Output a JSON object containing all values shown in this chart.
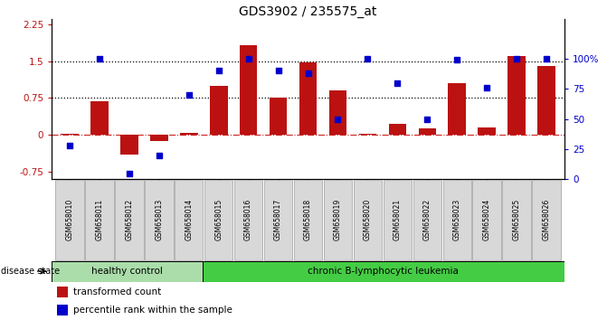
{
  "title": "GDS3902 / 235575_at",
  "samples": [
    "GSM658010",
    "GSM658011",
    "GSM658012",
    "GSM658013",
    "GSM658014",
    "GSM658015",
    "GSM658016",
    "GSM658017",
    "GSM658018",
    "GSM658019",
    "GSM658020",
    "GSM658021",
    "GSM658022",
    "GSM658023",
    "GSM658024",
    "GSM658025",
    "GSM658026"
  ],
  "bar_values": [
    0.02,
    0.68,
    -0.4,
    -0.13,
    0.05,
    1.0,
    1.82,
    0.75,
    1.48,
    0.9,
    0.02,
    0.22,
    0.13,
    1.05,
    0.16,
    1.6,
    1.4
  ],
  "dot_values": [
    28,
    100,
    5,
    20,
    70,
    90,
    100,
    90,
    88,
    50,
    100,
    80,
    50,
    99,
    76,
    100,
    100
  ],
  "healthy_count": 5,
  "ylim_left": [
    -0.9,
    2.35
  ],
  "ylim_right": [
    0,
    133.0
  ],
  "yticks_left": [
    -0.75,
    0.0,
    0.75,
    1.5,
    2.25
  ],
  "ytick_labels_left": [
    "-0.75",
    "0",
    "0.75",
    "1.5",
    "2.25"
  ],
  "yticks_right": [
    0,
    25,
    50,
    75,
    100
  ],
  "ytick_labels_right": [
    "0",
    "25",
    "50",
    "75",
    "100%"
  ],
  "hlines": [
    0.75,
    1.5
  ],
  "bar_color": "#bb1111",
  "dot_color": "#0000cc",
  "zero_line_color": "#cc2222",
  "hline_color": "#000000",
  "healthy_bg": "#aaddaa",
  "leukemia_bg": "#44cc44",
  "sample_box_bg": "#d8d8d8",
  "sample_box_edge": "#aaaaaa",
  "label_bar": "transformed count",
  "label_dot": "percentile rank within the sample",
  "disease_state_label": "disease state",
  "healthy_label": "healthy control",
  "leukemia_label": "chronic B-lymphocytic leukemia"
}
